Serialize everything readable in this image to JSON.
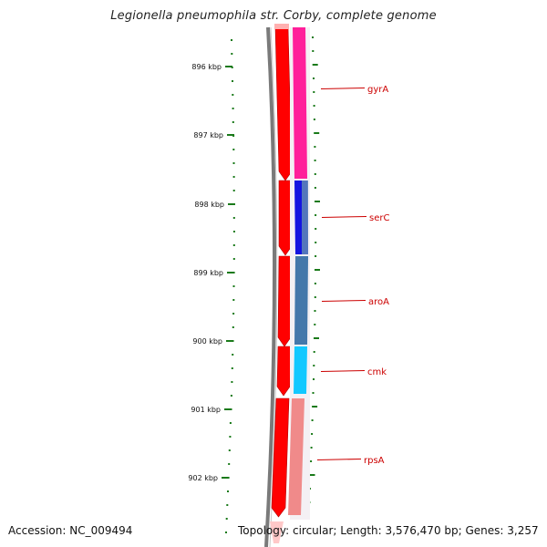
{
  "title": "Legionella pneumophila str. Corby, complete genome",
  "footer": {
    "accession": "Accession: NC_009494",
    "summary": "Topology: circular; Length: 3,576,470 bp; Genes: 3,257"
  },
  "colors": {
    "tick": "#1a7a1a",
    "backbone": "#7a7a7a",
    "forward_cds": "#ff0000",
    "label": "#cc0000",
    "gyrA": "#ff1f9a",
    "serC": "#1414e0",
    "aroA": "#4477aa",
    "cmk": "#12c8ff",
    "rpsA": "#f08a8a"
  },
  "map": {
    "ticks": [
      {
        "label": "896 kbp"
      },
      {
        "label": "897 kbp"
      },
      {
        "label": "898 kbp"
      },
      {
        "label": "899 kbp"
      },
      {
        "label": "900 kbp"
      },
      {
        "label": "901 kbp"
      },
      {
        "label": "902 kbp"
      }
    ],
    "genes": [
      {
        "name": "gyrA",
        "color_key": "gyrA"
      },
      {
        "name": "serC",
        "color_key": "serC"
      },
      {
        "name": "aroA",
        "color_key": "aroA"
      },
      {
        "name": "cmk",
        "color_key": "cmk"
      },
      {
        "name": "rpsA",
        "color_key": "rpsA"
      }
    ]
  }
}
